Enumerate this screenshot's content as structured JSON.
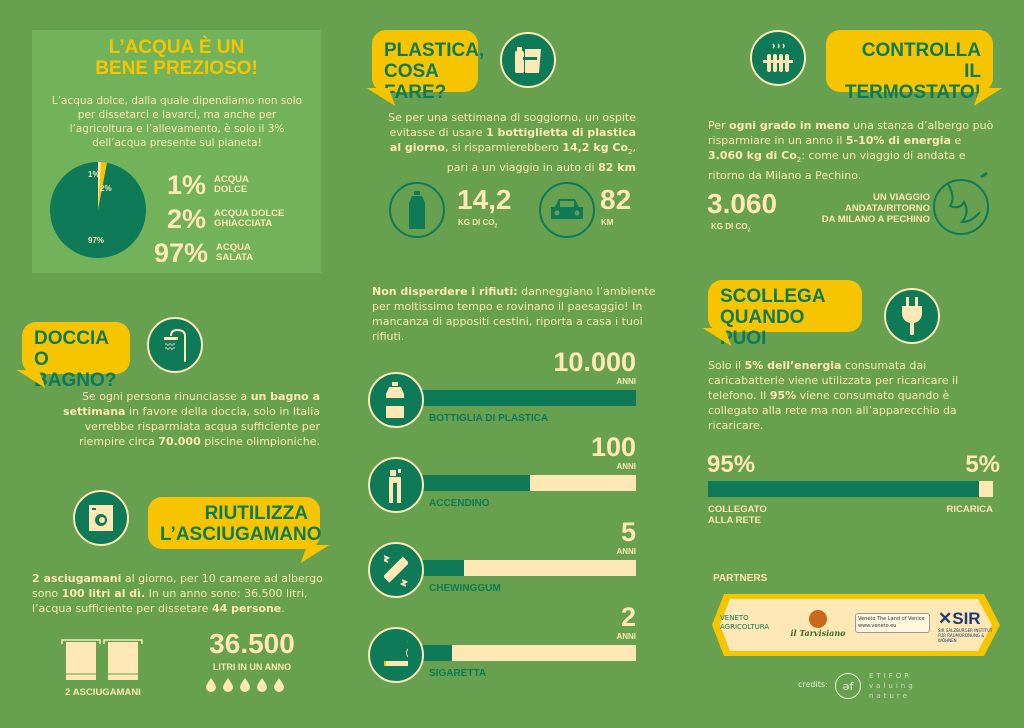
{
  "colors": {
    "background": "#67a04f",
    "panel": "#72b25a",
    "accent_yellow": "#f6c500",
    "teal": "#0f7a58",
    "cream": "#fde8b6"
  },
  "water": {
    "title_line1": "L’ACQUA È UN",
    "title_line2": "BENE PREZIOSO!",
    "text": "L’acqua dolce, dalla quale dipendiamo non solo per dissetarci e lavarci, ma anche per l’agricoltura e l’allevamento, è solo il 3% dell’acqua presente sul pianeta!",
    "chart_data": {
      "type": "pie",
      "slices": [
        {
          "label": "1%",
          "value": 1
        },
        {
          "label": "2%",
          "value": 2
        },
        {
          "label": "97%",
          "value": 97
        }
      ]
    },
    "legend": [
      {
        "pct": "1%",
        "label1": "ACQUA",
        "label2": "DOLCE"
      },
      {
        "pct": "2%",
        "label1": "ACQUA DOLCE",
        "label2": "GHIACCIATA"
      },
      {
        "pct": "97%",
        "label1": "ACQUA",
        "label2": "SALATA"
      }
    ]
  },
  "plastic": {
    "title_line1": "PLASTICA,",
    "title_line2": "COSA FARE?",
    "icon": "plastic-items-icon",
    "text": [
      {
        "t": "Se per una settimana di soggiorno, un ospite evitasse di usare "
      },
      {
        "t": "1 bottiglietta di plastica al giorno",
        "b": true
      },
      {
        "t": ", si risparmierebbero "
      },
      {
        "t": "14,2 kg Co",
        "b": true
      },
      {
        "t": "2",
        "s": true
      },
      {
        "t": ", pari a un viaggio in auto di "
      },
      {
        "t": "82 km",
        "b": true
      }
    ],
    "stat1": {
      "value": "14,2",
      "unit": "KG DI CO",
      "sub": "2",
      "icon": "bottle-icon"
    },
    "stat2": {
      "value": "82",
      "unit": "KM",
      "icon": "car-icon"
    }
  },
  "thermostat": {
    "title_line1": "CONTROLLA",
    "title_line2": "IL TERMOSTATO!",
    "icon": "radiator-icon",
    "text": [
      {
        "t": "Per "
      },
      {
        "t": "ogni grado in meno",
        "b": true
      },
      {
        "t": " una stanza d’albergo può risparmiare in un anno il "
      },
      {
        "t": "5-10% di energia",
        "b": true
      },
      {
        "t": " e "
      },
      {
        "t": "3.060 kg di Co",
        "b": true
      },
      {
        "t": "2",
        "s": true
      },
      {
        "t": ": come un viaggio di andata e ritorno da Milano a Pechino."
      }
    ],
    "value": "3.060",
    "unit": "KG DI CO",
    "sub": "2",
    "trip_line1": "UN VIAGGIO",
    "trip_line2": "ANDATA/RITORNO",
    "trip_line3": "DA MILANO A PECHINO"
  },
  "shower": {
    "title_line1": "DOCCIA",
    "title_line2": "O BAGNO?",
    "icon": "shower-icon",
    "text": [
      {
        "t": "Se ogni persona rinunciasse a "
      },
      {
        "t": "un bagno a settimana",
        "b": true
      },
      {
        "t": " in favore della doccia, solo in Italia verrebbe risparmiata acqua sufficiente per riempire circa "
      },
      {
        "t": "70.000",
        "b": true
      },
      {
        "t": " piscine olimpioniche."
      }
    ]
  },
  "towel": {
    "title_line1": "RIUTILIZZA",
    "title_line2": "L’ASCIUGAMANO",
    "icon": "washing-machine-icon",
    "text": [
      {
        "t": "2 asciugamani",
        "b": true
      },
      {
        "t": " al giorno, per 10 camere ad albergo sono "
      },
      {
        "t": "100 litri al dì.",
        "b": true
      },
      {
        "t": " In un anno sono: 36.500 litri, l’acqua sufficiente per dissetare "
      },
      {
        "t": "44 persone",
        "b": true
      },
      {
        "t": "."
      }
    ],
    "towels_label": "2 ASCIUGAMANI",
    "value": "36.500",
    "unit": "LITRI IN UN ANNO"
  },
  "waste": {
    "text": [
      {
        "t": "Non disperdere i rifiuti:",
        "b": true
      },
      {
        "t": " danneggiano l’ambiente per moltissimo tempo e rovinano il paesaggio! In mancanza di appositi cestini, riporta a casa i tuoi rifiuti."
      }
    ],
    "items": [
      {
        "value": "10.000",
        "unit": "ANNI",
        "label": "BOTTIGLIA DI PLASTICA",
        "fill": 1.0,
        "icon": "bottle-icon"
      },
      {
        "value": "100",
        "unit": "ANNI",
        "label": "ACCENDINO",
        "fill": 0.55,
        "icon": "lighter-icon"
      },
      {
        "value": "5",
        "unit": "ANNI",
        "label": "CHEWINGGUM",
        "fill": 0.27,
        "icon": "chewing-gum-icon"
      },
      {
        "value": "2",
        "unit": "ANNI",
        "label": "SIGARETTA",
        "fill": 0.22,
        "icon": "cigarette-icon"
      }
    ]
  },
  "unplug": {
    "title_line1": "SCOLLEGA",
    "title_line2": "QUANDO PUOI",
    "icon": "plug-icon",
    "text": [
      {
        "t": "Solo il "
      },
      {
        "t": "5% dell’energia",
        "b": true
      },
      {
        "t": " consumata dai caricabatterie viene utilizzata per ricaricare il telefono. Il "
      },
      {
        "t": "95%",
        "b": true
      },
      {
        "t": " viene consumato quando è collegato alla rete ma non all’apparecchio da ricaricare."
      }
    ],
    "left_pct": "95%",
    "right_pct": "5%",
    "left_value": 95,
    "left_label1": "COLLEGATO",
    "left_label2": "ALLA RETE",
    "right_label": "RICARICA"
  },
  "partners": {
    "title": "PARTNERS",
    "logos": [
      "VENETO AGRICOLTURA",
      "il Tarvisiano",
      "Veneto The Land of Venice www.veneto.eu",
      "SIR SALZBURGER INSTITUT FÜR RAUMORDNUNG & WOHNEN"
    ],
    "credits_label": "credits:",
    "credits_logo": "ETIFOR valuing nature"
  }
}
